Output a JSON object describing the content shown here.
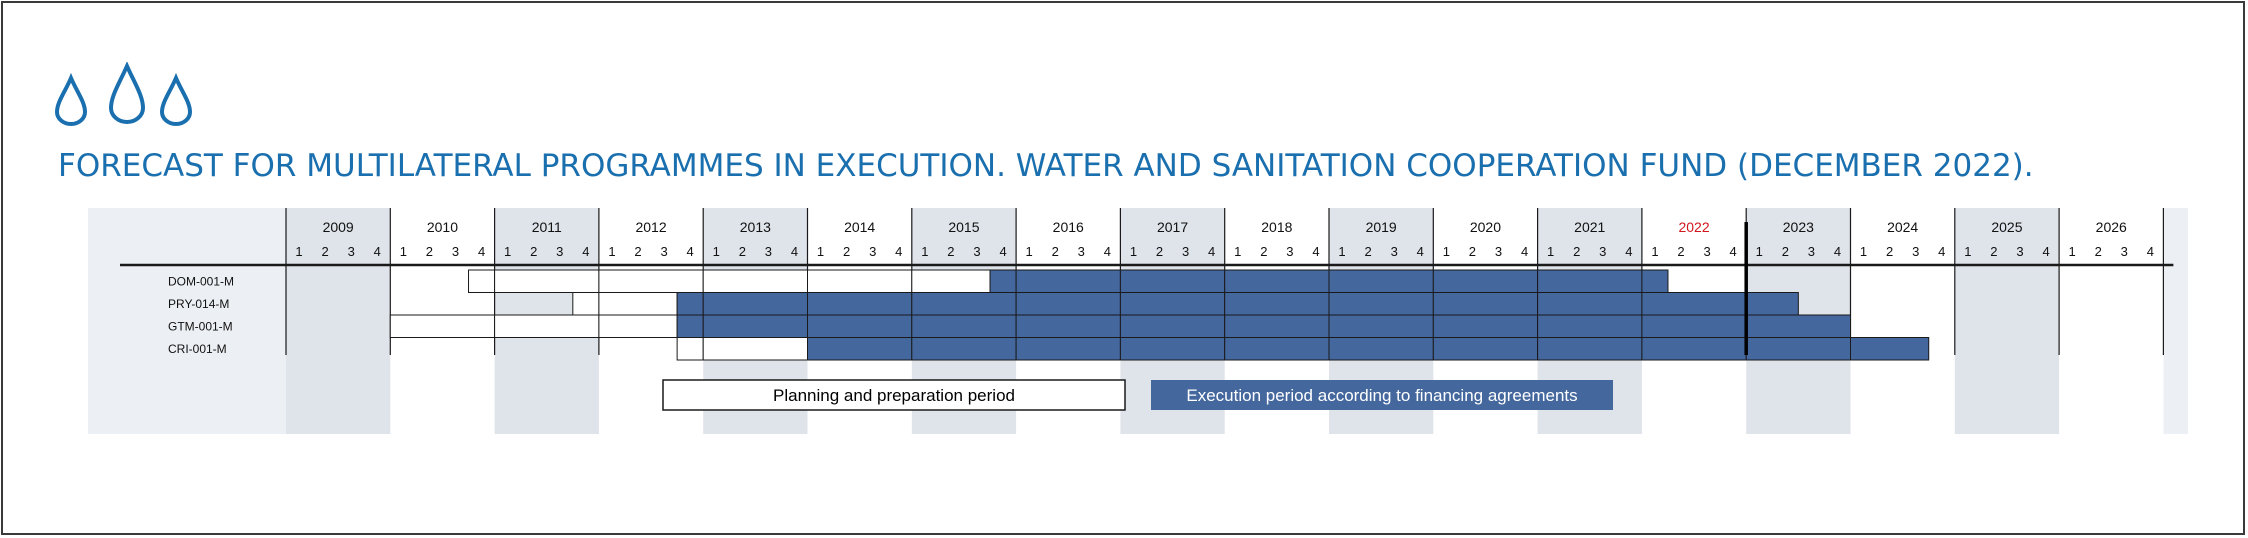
{
  "title": "FORECAST FOR MULTILATERAL PROGRAMMES IN EXECUTION. WATER AND SANITATION COOPERATION FUND (DECEMBER 2022).",
  "icon": "water-drops-icon",
  "colors": {
    "title": "#1a6faf",
    "execution": "#44679e",
    "planning": "#ffffff",
    "panel": "#eceff3",
    "shade": "#dfe3ea",
    "current_year": "#d0161d",
    "line": "#1a1a1a"
  },
  "chart_data": {
    "type": "gantt",
    "years": [
      "2009",
      "2010",
      "2011",
      "2012",
      "2013",
      "2014",
      "2015",
      "2016",
      "2017",
      "2018",
      "2019",
      "2020",
      "2021",
      "2022",
      "2023",
      "2024",
      "2025",
      "2026"
    ],
    "quarters": [
      "1",
      "2",
      "3",
      "4"
    ],
    "current_year": "2022",
    "current_marker": "2022 Q4 end",
    "programmes": [
      {
        "code": "DOM-001-M",
        "planning_start": "2010 Q4",
        "execution_start": "2015 Q4",
        "execution_end": "2022 Q1"
      },
      {
        "code": "PRY-014-M",
        "planning_start": "2011 Q4",
        "execution_start": "2012 Q4",
        "execution_end": "2023 Q2"
      },
      {
        "code": "GTM-001-M",
        "planning_start": "2010 Q1",
        "execution_start": "2012 Q4",
        "execution_end": "2023 Q4"
      },
      {
        "code": "CRI-001-M",
        "planning_start": "2012 Q4",
        "execution_start": "2014 Q1",
        "execution_end": "2024 Q3"
      }
    ],
    "legend": [
      {
        "key": "planning",
        "label": "Planning and preparation period"
      },
      {
        "key": "execution",
        "label": "Execution period according to financing agreements"
      }
    ]
  }
}
